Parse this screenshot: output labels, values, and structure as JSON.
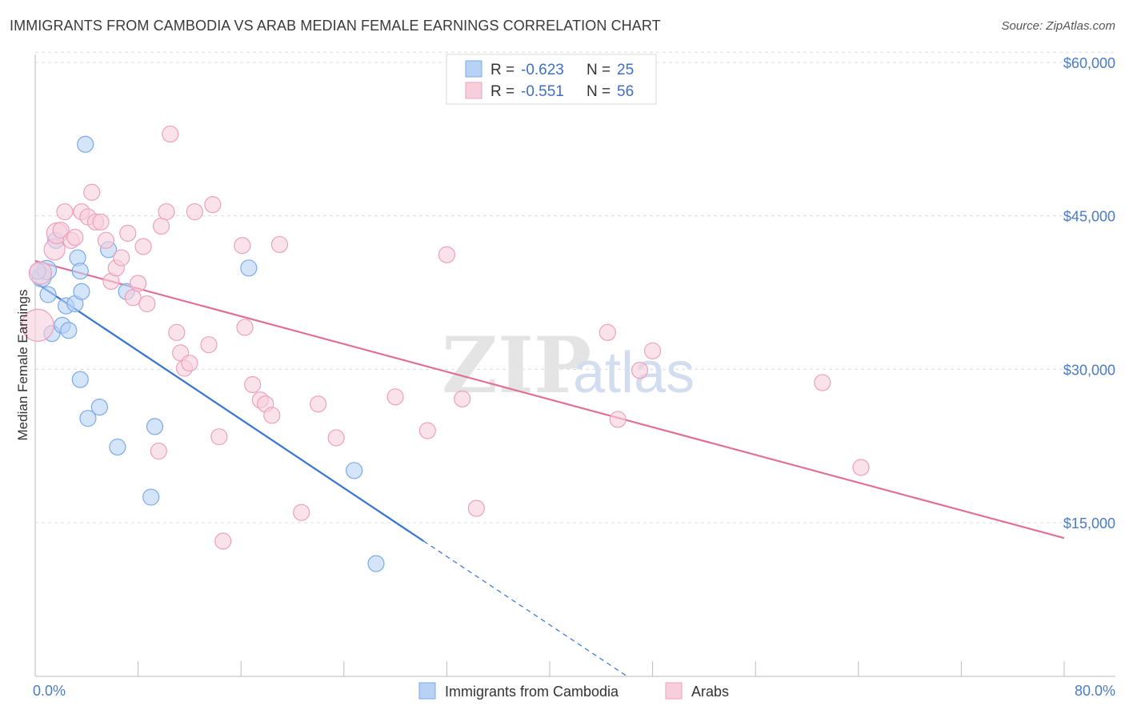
{
  "title": "IMMIGRANTS FROM CAMBODIA VS ARAB MEDIAN FEMALE EARNINGS CORRELATION CHART",
  "source": "Source: ZipAtlas.com",
  "watermark": {
    "zip": "ZIP",
    "atlas": "atlas"
  },
  "chart_data": {
    "type": "scatter",
    "title": "IMMIGRANTS FROM CAMBODIA VS ARAB MEDIAN FEMALE EARNINGS CORRELATION CHART",
    "xlabel": "",
    "ylabel": "Median Female Earnings",
    "xlim": [
      0,
      80
    ],
    "ylim": [
      2000,
      63000
    ],
    "x_tick_labels": [
      {
        "value": 0,
        "label": "0.0%"
      },
      {
        "value": 80,
        "label": "80.0%"
      }
    ],
    "y_ticks": [
      {
        "value": 15000,
        "label": "$15,000"
      },
      {
        "value": 30000,
        "label": "$30,000"
      },
      {
        "value": 45000,
        "label": "$45,000"
      },
      {
        "value": 60000,
        "label": "$60,000"
      }
    ],
    "legend": {
      "position": "top-center",
      "entries": [
        {
          "r_label": "R =",
          "r_value": "-0.623",
          "n_label": "N =",
          "n_value": "25"
        },
        {
          "r_label": "R =",
          "r_value": "-0.551",
          "n_label": "N =",
          "n_value": "56"
        }
      ]
    },
    "series": [
      {
        "name": "Immigrants from Cambodia",
        "color": "#7aaae8",
        "fill": "#b8d2f5",
        "line_color": "#3574d4",
        "trend": {
          "x0": 0,
          "y0": 38500,
          "x1": 30.2,
          "y1": 13200,
          "dash_to_x": 46,
          "dash_to_y": 0
        },
        "points": [
          {
            "x": 0.5,
            "y": 39000,
            "s": 12
          },
          {
            "x": 0.9,
            "y": 39700,
            "s": 12
          },
          {
            "x": 1.0,
            "y": 37300,
            "s": 10
          },
          {
            "x": 1.3,
            "y": 33500,
            "s": 10
          },
          {
            "x": 1.6,
            "y": 42600,
            "s": 10
          },
          {
            "x": 2.1,
            "y": 34300,
            "s": 10
          },
          {
            "x": 2.4,
            "y": 36200,
            "s": 10
          },
          {
            "x": 2.6,
            "y": 33800,
            "s": 10
          },
          {
            "x": 3.1,
            "y": 36400,
            "s": 10
          },
          {
            "x": 3.3,
            "y": 40900,
            "s": 10
          },
          {
            "x": 3.5,
            "y": 29000,
            "s": 10
          },
          {
            "x": 3.5,
            "y": 39600,
            "s": 10
          },
          {
            "x": 3.6,
            "y": 37600,
            "s": 10
          },
          {
            "x": 3.9,
            "y": 52000,
            "s": 10
          },
          {
            "x": 4.1,
            "y": 25200,
            "s": 10
          },
          {
            "x": 5.0,
            "y": 26300,
            "s": 10
          },
          {
            "x": 5.7,
            "y": 41700,
            "s": 10
          },
          {
            "x": 6.4,
            "y": 22400,
            "s": 10
          },
          {
            "x": 7.1,
            "y": 37600,
            "s": 10
          },
          {
            "x": 9.0,
            "y": 17500,
            "s": 10
          },
          {
            "x": 9.3,
            "y": 24400,
            "s": 10
          },
          {
            "x": 16.6,
            "y": 39900,
            "s": 10
          },
          {
            "x": 24.8,
            "y": 20100,
            "s": 10
          },
          {
            "x": 26.5,
            "y": 11000,
            "s": 10
          },
          {
            "x": 0.2,
            "y": 39600,
            "s": 10
          }
        ]
      },
      {
        "name": "Arabs",
        "color": "#eda0bd",
        "fill": "#f7cfdc",
        "line_color": "#e07098",
        "trend": {
          "x0": 0,
          "y0": 40600,
          "x1": 80,
          "y1": 13500
        },
        "points": [
          {
            "x": 0.2,
            "y": 34300,
            "s": 20
          },
          {
            "x": 0.4,
            "y": 39400,
            "s": 14
          },
          {
            "x": 1.5,
            "y": 41700,
            "s": 13
          },
          {
            "x": 1.7,
            "y": 43300,
            "s": 13
          },
          {
            "x": 2.0,
            "y": 43600,
            "s": 10
          },
          {
            "x": 2.3,
            "y": 45400,
            "s": 10
          },
          {
            "x": 2.8,
            "y": 42600,
            "s": 10
          },
          {
            "x": 3.1,
            "y": 42900,
            "s": 10
          },
          {
            "x": 3.6,
            "y": 45400,
            "s": 10
          },
          {
            "x": 4.1,
            "y": 44900,
            "s": 10
          },
          {
            "x": 4.4,
            "y": 47300,
            "s": 10
          },
          {
            "x": 4.7,
            "y": 44400,
            "s": 10
          },
          {
            "x": 5.1,
            "y": 44400,
            "s": 10
          },
          {
            "x": 5.5,
            "y": 42600,
            "s": 10
          },
          {
            "x": 5.9,
            "y": 38600,
            "s": 10
          },
          {
            "x": 6.3,
            "y": 39900,
            "s": 10
          },
          {
            "x": 6.7,
            "y": 40900,
            "s": 10
          },
          {
            "x": 7.2,
            "y": 43300,
            "s": 10
          },
          {
            "x": 7.6,
            "y": 37000,
            "s": 10
          },
          {
            "x": 8.0,
            "y": 38400,
            "s": 10
          },
          {
            "x": 8.4,
            "y": 42000,
            "s": 10
          },
          {
            "x": 8.7,
            "y": 36400,
            "s": 10
          },
          {
            "x": 9.6,
            "y": 22000,
            "s": 10
          },
          {
            "x": 9.8,
            "y": 44000,
            "s": 10
          },
          {
            "x": 10.2,
            "y": 45400,
            "s": 10
          },
          {
            "x": 10.5,
            "y": 53000,
            "s": 10
          },
          {
            "x": 11.0,
            "y": 33600,
            "s": 10
          },
          {
            "x": 11.3,
            "y": 31600,
            "s": 10
          },
          {
            "x": 11.6,
            "y": 30100,
            "s": 10
          },
          {
            "x": 12.0,
            "y": 30600,
            "s": 10
          },
          {
            "x": 12.4,
            "y": 45400,
            "s": 10
          },
          {
            "x": 13.5,
            "y": 32400,
            "s": 10
          },
          {
            "x": 13.8,
            "y": 46100,
            "s": 10
          },
          {
            "x": 14.3,
            "y": 23400,
            "s": 10
          },
          {
            "x": 14.6,
            "y": 13200,
            "s": 10
          },
          {
            "x": 16.1,
            "y": 42100,
            "s": 10
          },
          {
            "x": 16.3,
            "y": 34100,
            "s": 10
          },
          {
            "x": 16.9,
            "y": 28500,
            "s": 10
          },
          {
            "x": 17.5,
            "y": 27000,
            "s": 10
          },
          {
            "x": 17.9,
            "y": 26600,
            "s": 10
          },
          {
            "x": 18.4,
            "y": 25500,
            "s": 10
          },
          {
            "x": 19.0,
            "y": 42200,
            "s": 10
          },
          {
            "x": 20.7,
            "y": 16000,
            "s": 10
          },
          {
            "x": 22.0,
            "y": 26600,
            "s": 10
          },
          {
            "x": 23.4,
            "y": 23300,
            "s": 10
          },
          {
            "x": 28.0,
            "y": 27300,
            "s": 10
          },
          {
            "x": 30.5,
            "y": 24000,
            "s": 10
          },
          {
            "x": 32.0,
            "y": 41200,
            "s": 10
          },
          {
            "x": 33.2,
            "y": 27100,
            "s": 10
          },
          {
            "x": 34.3,
            "y": 16400,
            "s": 10
          },
          {
            "x": 44.5,
            "y": 33600,
            "s": 10
          },
          {
            "x": 45.3,
            "y": 25100,
            "s": 10
          },
          {
            "x": 47.0,
            "y": 29900,
            "s": 10
          },
          {
            "x": 48.0,
            "y": 31800,
            "s": 10
          },
          {
            "x": 61.2,
            "y": 28700,
            "s": 10
          },
          {
            "x": 64.2,
            "y": 20400,
            "s": 10
          }
        ]
      }
    ]
  }
}
